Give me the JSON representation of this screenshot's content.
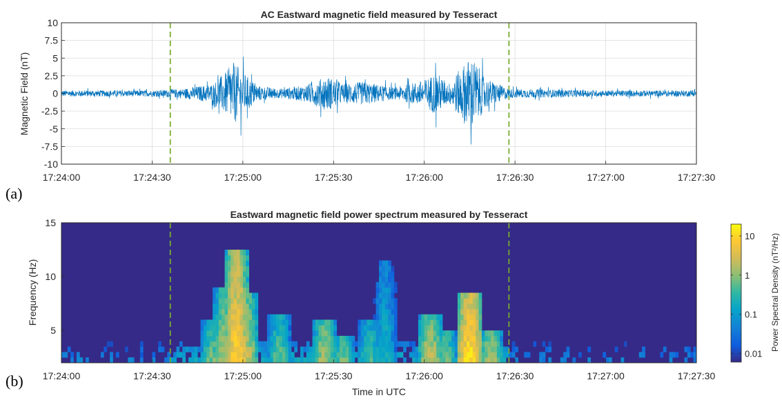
{
  "chart_data": [
    {
      "type": "line",
      "title": "AC Eastward magnetic field measured by Tesseract",
      "panel_label": "(a)",
      "xlabel": "",
      "ylabel": "Magnetic Field (nT)",
      "xlim": [
        "17:24:00",
        "17:27:30"
      ],
      "ylim": [
        -10,
        10
      ],
      "x_ticks": [
        "17:24:00",
        "17:24:30",
        "17:25:00",
        "17:25:30",
        "17:26:00",
        "17:26:30",
        "17:27:00",
        "17:27:30"
      ],
      "y_ticks": [
        "-10",
        "-7.5",
        "-5",
        "-2.5",
        "0",
        "2.5",
        "5",
        "7.5",
        "10"
      ],
      "grid": true,
      "series_color": "#0072BD",
      "marker_line_color": "#77AC30",
      "vertical_markers": [
        "17:24:36",
        "17:26:28"
      ],
      "amplitude_envelope": [
        {
          "t": "17:24:00",
          "amp": 0.8
        },
        {
          "t": "17:24:30",
          "amp": 0.8
        },
        {
          "t": "17:24:40",
          "amp": 1.2
        },
        {
          "t": "17:24:50",
          "amp": 2.5
        },
        {
          "t": "17:24:55",
          "amp": 6.0
        },
        {
          "t": "17:24:57",
          "amp": 8.0
        },
        {
          "t": "17:25:00",
          "amp": 5.5
        },
        {
          "t": "17:25:05",
          "amp": 2.0
        },
        {
          "t": "17:25:12",
          "amp": 1.2
        },
        {
          "t": "17:25:20",
          "amp": 2.0
        },
        {
          "t": "17:25:28",
          "amp": 4.5
        },
        {
          "t": "17:25:33",
          "amp": 2.5
        },
        {
          "t": "17:25:40",
          "amp": 3.0
        },
        {
          "t": "17:25:50",
          "amp": 1.5
        },
        {
          "t": "17:26:00",
          "amp": 3.5
        },
        {
          "t": "17:26:04",
          "amp": 5.5
        },
        {
          "t": "17:26:08",
          "amp": 2.5
        },
        {
          "t": "17:26:14",
          "amp": 8.5
        },
        {
          "t": "17:26:16",
          "amp": 9.5
        },
        {
          "t": "17:26:20",
          "amp": 4.0
        },
        {
          "t": "17:26:28",
          "amp": 1.2
        },
        {
          "t": "17:27:00",
          "amp": 0.8
        },
        {
          "t": "17:27:30",
          "amp": 0.8
        }
      ]
    },
    {
      "type": "heatmap",
      "title": "Eastward magnetic field power spectrum measured by Tesseract",
      "panel_label": "(b)",
      "xlabel": "Time in UTC",
      "ylabel": "Frequency (Hz)",
      "xlim": [
        "17:24:00",
        "17:27:30"
      ],
      "ylim": [
        2,
        15
      ],
      "x_ticks": [
        "17:24:00",
        "17:24:30",
        "17:25:00",
        "17:25:30",
        "17:26:00",
        "17:26:30",
        "17:27:00",
        "17:27:30"
      ],
      "y_ticks": [
        "5",
        "10",
        "15"
      ],
      "colorbar_label": "Power Spectral Density (nT²/Hz)",
      "colorbar_ticks": [
        "0.01",
        "0.1",
        "1",
        "10"
      ],
      "colorbar_range": [
        0.006,
        20
      ],
      "colormap": "parula",
      "background_level": 0.008,
      "marker_line_color": "#77AC30",
      "vertical_markers": [
        "17:24:36",
        "17:26:28"
      ],
      "activity_bursts": [
        {
          "t": "17:24:50",
          "fmax": 6.0,
          "peak": 1.0
        },
        {
          "t": "17:24:54",
          "fmax": 9.0,
          "peak": 2.0
        },
        {
          "t": "17:24:58",
          "fmax": 12.5,
          "peak": 10.0
        },
        {
          "t": "17:25:01",
          "fmax": 8.5,
          "peak": 3.0
        },
        {
          "t": "17:25:12",
          "fmax": 6.5,
          "peak": 0.8
        },
        {
          "t": "17:25:27",
          "fmax": 6.0,
          "peak": 2.0
        },
        {
          "t": "17:25:33",
          "fmax": 4.5,
          "peak": 1.0
        },
        {
          "t": "17:25:42",
          "fmax": 6.0,
          "peak": 0.6
        },
        {
          "t": "17:25:47",
          "fmax": 11.5,
          "peak": 0.3
        },
        {
          "t": "17:26:02",
          "fmax": 6.5,
          "peak": 3.0
        },
        {
          "t": "17:26:07",
          "fmax": 5.0,
          "peak": 1.0
        },
        {
          "t": "17:26:15",
          "fmax": 8.5,
          "peak": 15.0
        },
        {
          "t": "17:26:22",
          "fmax": 5.0,
          "peak": 2.0
        }
      ]
    }
  ]
}
